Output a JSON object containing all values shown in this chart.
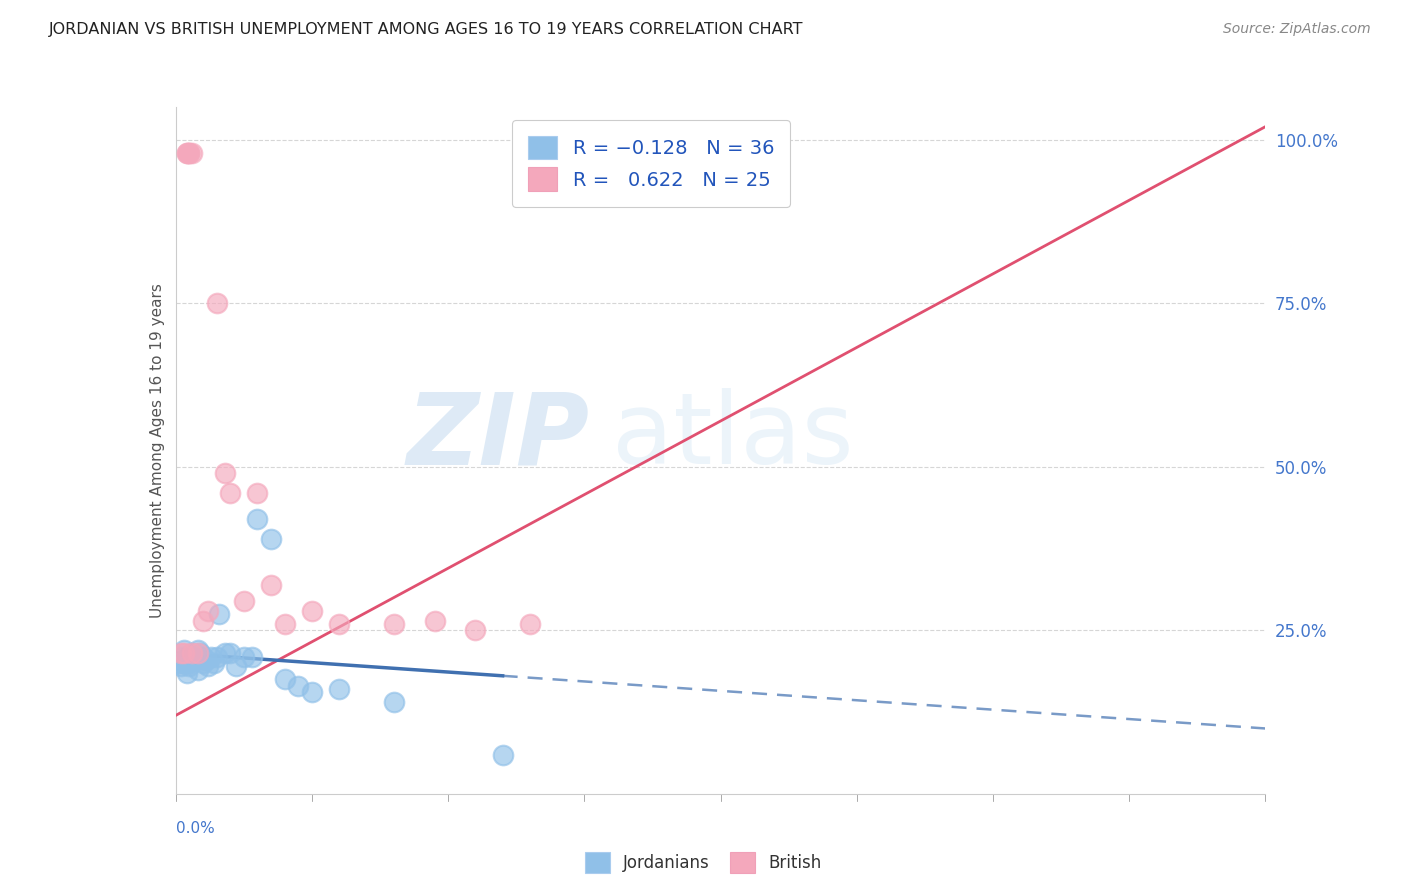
{
  "title": "JORDANIAN VS BRITISH UNEMPLOYMENT AMONG AGES 16 TO 19 YEARS CORRELATION CHART",
  "source": "Source: ZipAtlas.com",
  "ylabel": "Unemployment Among Ages 16 to 19 years",
  "ylabel_right_ticks": [
    "25.0%",
    "50.0%",
    "75.0%",
    "100.0%"
  ],
  "ylabel_right_vals": [
    0.25,
    0.5,
    0.75,
    1.0
  ],
  "jordanian_color": "#90c0e8",
  "british_color": "#f4a8bc",
  "trendline_jordanian_color": "#4070b0",
  "trendline_british_color": "#e05070",
  "background_color": "#ffffff",
  "grid_color": "#cccccc",
  "xlim": [
    0.0,
    0.4
  ],
  "ylim": [
    0.0,
    1.05
  ],
  "jordanian_x": [
    0.001,
    0.002,
    0.002,
    0.003,
    0.003,
    0.004,
    0.004,
    0.005,
    0.005,
    0.006,
    0.006,
    0.007,
    0.008,
    0.008,
    0.009,
    0.01,
    0.01,
    0.011,
    0.012,
    0.013,
    0.014,
    0.015,
    0.016,
    0.018,
    0.02,
    0.022,
    0.025,
    0.028,
    0.03,
    0.035,
    0.04,
    0.045,
    0.05,
    0.06,
    0.08,
    0.12
  ],
  "jordanian_y": [
    0.2,
    0.21,
    0.195,
    0.22,
    0.2,
    0.21,
    0.185,
    0.2,
    0.195,
    0.215,
    0.21,
    0.205,
    0.22,
    0.19,
    0.215,
    0.21,
    0.2,
    0.205,
    0.195,
    0.21,
    0.2,
    0.21,
    0.275,
    0.215,
    0.215,
    0.195,
    0.21,
    0.21,
    0.42,
    0.39,
    0.175,
    0.165,
    0.155,
    0.16,
    0.14,
    0.06
  ],
  "british_x": [
    0.002,
    0.003,
    0.004,
    0.004,
    0.005,
    0.005,
    0.006,
    0.006,
    0.008,
    0.01,
    0.012,
    0.015,
    0.018,
    0.02,
    0.025,
    0.03,
    0.035,
    0.04,
    0.05,
    0.06,
    0.08,
    0.095,
    0.11,
    0.13,
    0.16
  ],
  "british_y": [
    0.215,
    0.215,
    0.98,
    0.98,
    0.98,
    0.98,
    0.98,
    0.215,
    0.215,
    0.265,
    0.28,
    0.75,
    0.49,
    0.46,
    0.295,
    0.46,
    0.32,
    0.26,
    0.28,
    0.26,
    0.26,
    0.265,
    0.25,
    0.26,
    0.98
  ],
  "trendline_british_x0": 0.0,
  "trendline_british_y0": 0.12,
  "trendline_british_x1": 0.4,
  "trendline_british_y1": 1.02,
  "trendline_jordan_x0": 0.0,
  "trendline_jordan_y0": 0.215,
  "trendline_jordan_x1": 0.4,
  "trendline_jordan_y1": 0.1,
  "trendline_jordan_dashed_x0": 0.12,
  "trendline_jordan_dashed_x1": 0.4
}
